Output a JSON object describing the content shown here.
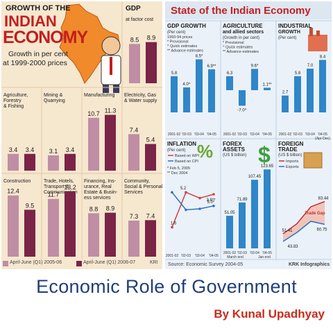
{
  "left": {
    "title_line1": "GROWTH OF THE",
    "title_line2": "INDIAN",
    "title_line3": "ECONOMY",
    "subtitle_line1": "Growth in per cent",
    "subtitle_line2": "at 1999-2000 prices",
    "legend_1": "April-June (Q1) 2005-06",
    "legend_2": "April-June (Q1) 2006-07",
    "credit": "KRI",
    "colors": {
      "bar_q1_2005": "#c08ea4",
      "bar_q1_2006": "#7a2448",
      "title": "#c41e1e"
    }
  },
  "right": {
    "title": "State of the Indian Economy",
    "source": "Source: Economic Survey 2004-05",
    "credit": "KRK Infographics",
    "colors": {
      "bar": "#2f86c8",
      "bar_light": "#90c4e6",
      "title": "#c41e1e"
    }
  },
  "chart_data": [
    {
      "type": "bar",
      "title": "GDP",
      "subtitle": "at factor cost",
      "series": [
        {
          "name": "April-June (Q1) 2005-06",
          "values": [
            8.5
          ]
        },
        {
          "name": "April-June (Q1) 2006-07",
          "values": [
            8.9
          ]
        }
      ]
    },
    {
      "type": "bar",
      "title": "Agriculture, Forestry & Fishing",
      "series": [
        {
          "name": "April-June (Q1) 2005-06",
          "values": [
            3.4
          ]
        },
        {
          "name": "April-June (Q1) 2006-07",
          "values": [
            3.4
          ]
        }
      ]
    },
    {
      "type": "bar",
      "title": "Mining & Quarrying",
      "series": [
        {
          "name": "April-June (Q1) 2005-06",
          "values": [
            3.1
          ]
        },
        {
          "name": "April-June (Q1) 2006-07",
          "values": [
            3.4
          ]
        }
      ]
    },
    {
      "type": "bar",
      "title": "Manufacturing",
      "series": [
        {
          "name": "April-June (Q1) 2005-06",
          "values": [
            10.7
          ]
        },
        {
          "name": "April-June (Q1) 2006-07",
          "values": [
            11.3
          ]
        }
      ]
    },
    {
      "type": "bar",
      "title": "Electricity, Gas & Water supply",
      "series": [
        {
          "name": "April-June (Q1) 2005-06",
          "values": [
            7.4
          ]
        },
        {
          "name": "April-June (Q1) 2006-07",
          "values": [
            5.4
          ]
        }
      ]
    },
    {
      "type": "bar",
      "title": "Construction",
      "series": [
        {
          "name": "April-June (Q1) 2005-06",
          "values": [
            12.4
          ]
        },
        {
          "name": "April-June (Q1) 2006-07",
          "values": [
            9.5
          ]
        }
      ]
    },
    {
      "type": "bar",
      "title": "Trade, Hotels, Transport & Communication",
      "series": [
        {
          "name": "April-June (Q1) 2005-06",
          "values": [
            11.7
          ]
        },
        {
          "name": "April-June (Q1) 2006-07",
          "values": [
            13.2
          ]
        }
      ]
    },
    {
      "type": "bar",
      "title": "Financing, Insurance, Real Estate & Business services",
      "series": [
        {
          "name": "April-June (Q1) 2005-06",
          "values": [
            8.8
          ]
        },
        {
          "name": "April-June (Q1) 2006-07",
          "values": [
            8.9
          ]
        }
      ]
    },
    {
      "type": "bar",
      "title": "Community, Social & Personal Services",
      "series": [
        {
          "name": "April-June (Q1) 2005-06",
          "values": [
            7.3
          ]
        },
        {
          "name": "April-June (Q1) 2006-07",
          "values": [
            7.4
          ]
        }
      ]
    },
    {
      "type": "bar",
      "title": "GDP GROWTH",
      "subtitle": "(Per cent)",
      "notes": [
        "1993-94 prices",
        "* Provisional",
        "^ Quick estimates",
        "** Advance estimates"
      ],
      "categories": [
        "2001-02",
        "'02-03",
        "'03-04",
        "'04-05"
      ],
      "labels": [
        "5.8",
        "4.0^",
        "8.5*",
        "6.9**"
      ],
      "values": [
        5.8,
        4.0,
        8.5,
        6.9
      ]
    },
    {
      "type": "bar",
      "title": "AGRICULTURE and allied sectors",
      "subtitle": "(Growth in per cent)",
      "notes": [
        "* Provisional",
        "^ Quick estimates",
        "** Advance estimates"
      ],
      "categories": [
        "2001-02",
        "'02-03",
        "'03-04",
        "'04-05"
      ],
      "labels": [
        "6.3",
        "-7.0^",
        "9.6*",
        "1.1**"
      ],
      "values": [
        6.3,
        -7.0,
        9.6,
        1.1
      ]
    },
    {
      "type": "bar",
      "title": "INDUSTRIAL GROWTH",
      "subtitle": "(Per cent)",
      "categories": [
        "2001-02",
        "'02-03",
        "'03-04",
        "'04-05 (Apr-Dec)"
      ],
      "labels": [
        "2.7",
        "5.8",
        "7.0",
        "8.4"
      ],
      "values": [
        2.7,
        5.8,
        7.0,
        8.4
      ]
    },
    {
      "type": "line",
      "title": "INFLATION",
      "subtitle": "(Per cent)",
      "notes": [
        "* Feb 5, 2005",
        "** Dec 2004"
      ],
      "categories": [
        "2001-02",
        "'02-03",
        "'03-04",
        "'04-05"
      ],
      "series": [
        {
          "name": "Based on WPI",
          "values": [
            1.6,
            5.2,
            4.6,
            5.0
          ]
        },
        {
          "name": "Based on CPI",
          "values": [
            5.2,
            3.4,
            3.5,
            3.8
          ]
        }
      ],
      "labels": [
        "1.6",
        "5.2",
        "5.0*",
        "3.8**"
      ]
    },
    {
      "type": "bar",
      "title": "FOREX ASSETS",
      "subtitle": "(US $ billion)",
      "categories": [
        "2001-02",
        "'02-03",
        "'03-04",
        "'04-05"
      ],
      "category_notes": [
        "March end",
        "",
        "",
        "Jan end"
      ],
      "values": [
        51.05,
        71.89,
        107.45,
        123.65
      ]
    },
    {
      "type": "line",
      "title": "FOREIGN TRADE",
      "subtitle": "(US $ billion)",
      "categories": [
        "2001-02",
        "'02-03",
        "'03-04",
        "'04-05"
      ],
      "series": [
        {
          "name": "Imports",
          "values": [
            51.41,
            61.4,
            78.2,
            83.44
          ]
        },
        {
          "name": "Exports",
          "values": [
            43.83,
            52.7,
            63.8,
            60.75
          ]
        }
      ],
      "annotation": "Trade Gap"
    }
  ]
}
